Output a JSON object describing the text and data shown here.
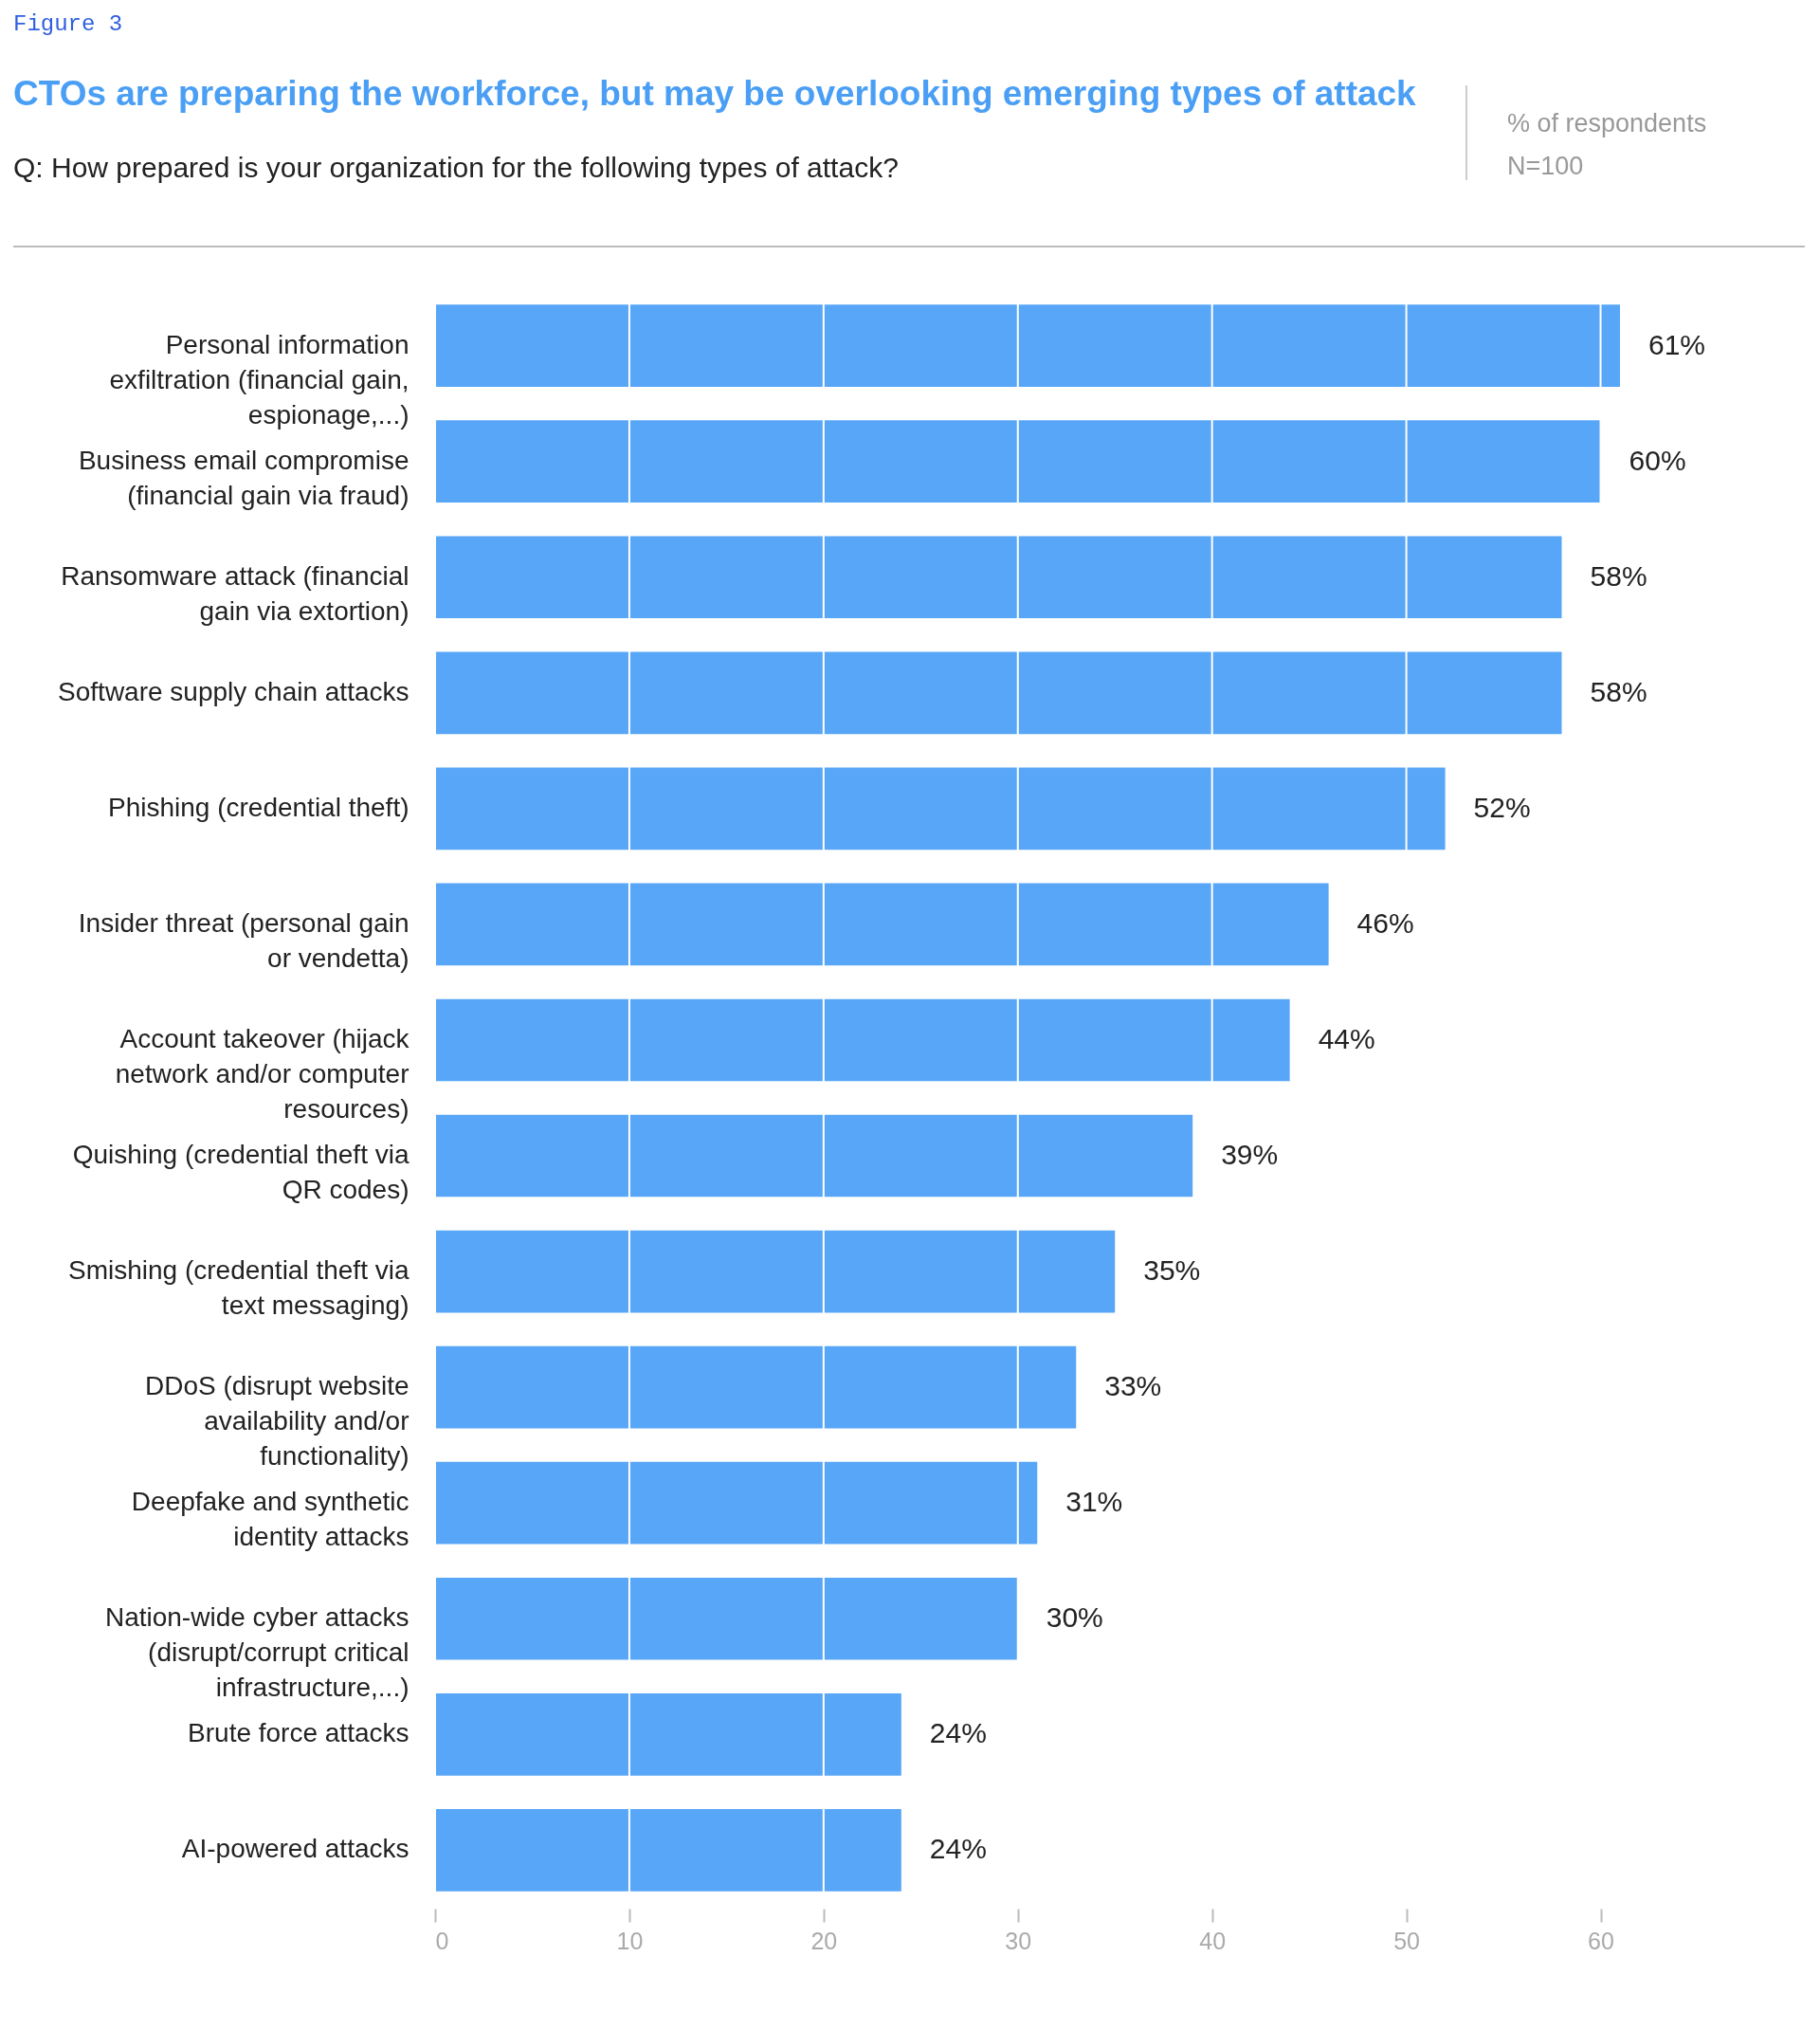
{
  "chart_data": {
    "type": "bar",
    "orientation": "horizontal",
    "title": "CTOs are preparing the workforce, but may be overlooking emerging types of attack",
    "subtitle": "Q:  How prepared is your organization for the following types of attack?",
    "annotations": [
      "Figure 3",
      "% of respondents",
      "N=100"
    ],
    "categories": [
      "Personal information exfiltration (financial gain, espionage,...)",
      "Business email compromise (financial gain via fraud)",
      "Ransomware attack (financial gain via extortion)",
      "Software supply chain attacks",
      "Phishing (credential theft)",
      "Insider threat (personal gain or vendetta)",
      "Account takeover (hijack network and/or computer resources)",
      "Quishing (credential theft via QR codes)",
      "Smishing (credential theft via text messaging)",
      "DDoS (disrupt website availability and/or functionality)",
      "Deepfake and synthetic identity attacks",
      "Nation-wide cyber attacks (disrupt/corrupt critical infrastructure,...)",
      "Brute force attacks",
      "AI-powered attacks"
    ],
    "values": [
      61,
      60,
      58,
      58,
      52,
      46,
      44,
      39,
      35,
      33,
      31,
      30,
      24,
      24
    ],
    "value_labels": [
      "61%",
      "60%",
      "58%",
      "58%",
      "52%",
      "46%",
      "44%",
      "39%",
      "35%",
      "33%",
      "31%",
      "30%",
      "24%",
      "24%"
    ],
    "color": "#58a6f7",
    "xlim": [
      0,
      61
    ],
    "xticks": [
      0,
      10,
      20,
      30,
      40,
      50,
      60
    ],
    "grid": "x"
  }
}
